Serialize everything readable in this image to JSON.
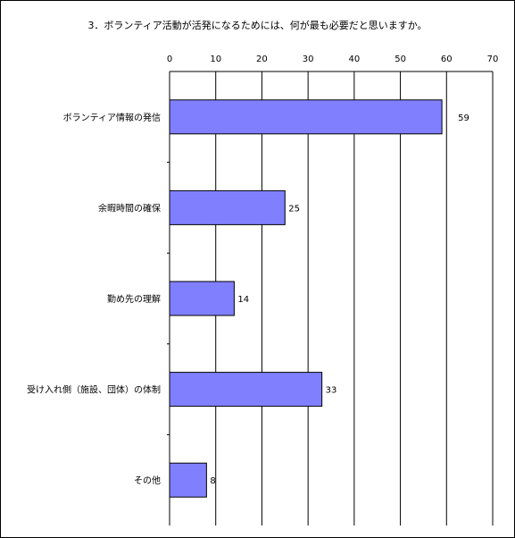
{
  "chart_data": {
    "type": "bar",
    "orientation": "horizontal",
    "title": "3．ボランティア活動が活発になるためには、何が最も必要だと思いますか。",
    "categories": [
      "ボランティア情報の発信",
      "余暇時間の確保",
      "勤め先の理解",
      "受け入れ側（施設、団体）の体制",
      "その他"
    ],
    "values": [
      59,
      25,
      14,
      33,
      8
    ],
    "value_labels": [
      "59",
      "25",
      "14",
      "33",
      "8"
    ],
    "x_ticks": [
      "0",
      "10",
      "20",
      "30",
      "40",
      "50",
      "60",
      "70"
    ],
    "xlim": [
      0,
      70
    ],
    "grid": true,
    "axis_position": "top",
    "legend": "none",
    "colors": {
      "bar_fill": "#8080ff",
      "bar_stroke": "#000000",
      "grid": "#000000"
    }
  }
}
